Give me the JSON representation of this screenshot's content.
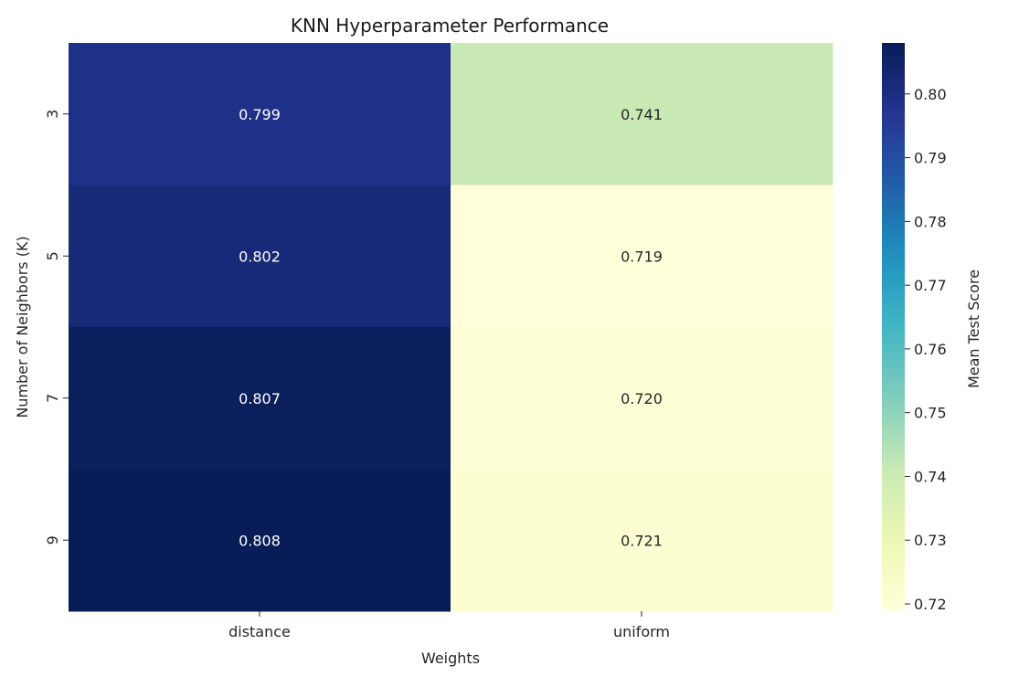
{
  "chart_data": {
    "type": "heatmap",
    "title": "KNN Hyperparameter Performance",
    "xlabel": "Weights",
    "ylabel": "Number of Neighbors (K)",
    "x_categories": [
      "distance",
      "uniform"
    ],
    "y_categories": [
      "3",
      "5",
      "7",
      "9"
    ],
    "values": [
      [
        0.799,
        0.741
      ],
      [
        0.802,
        0.719
      ],
      [
        0.807,
        0.72
      ],
      [
        0.808,
        0.721
      ]
    ],
    "value_labels": [
      [
        "0.799",
        "0.741"
      ],
      [
        "0.802",
        "0.719"
      ],
      [
        "0.807",
        "0.720"
      ],
      [
        "0.808",
        "0.721"
      ]
    ],
    "colormap": "YlGnBu",
    "colorbar": {
      "label": "Mean Test Score",
      "range": [
        0.719,
        0.808
      ],
      "ticks": [
        0.72,
        0.73,
        0.74,
        0.75,
        0.76,
        0.77,
        0.78,
        0.79,
        0.8
      ],
      "tick_labels": [
        "0.72",
        "0.73",
        "0.74",
        "0.75",
        "0.76",
        "0.77",
        "0.78",
        "0.79",
        "0.80"
      ]
    }
  }
}
